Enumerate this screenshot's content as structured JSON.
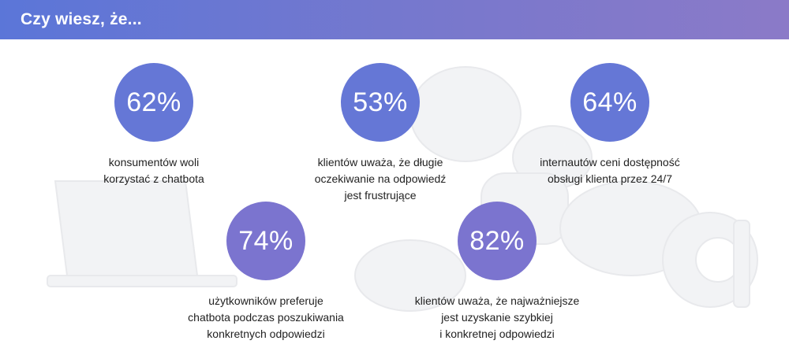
{
  "header": {
    "title": "Czy wiesz, że..."
  },
  "stats": [
    {
      "value": "62%",
      "text": "konsumentów woli\nkorzystać z chatbota"
    },
    {
      "value": "53%",
      "text": "klientów uważa, że długie\noczekiwanie na odpowiedź\njest frustrujące"
    },
    {
      "value": "64%",
      "text": "internautów ceni dostępność\nobsługi klienta przez 24/7"
    },
    {
      "value": "74%",
      "text": "użytkowników preferuje\nchatbota podczas poszukiwania\nkonkretnych odpowiedzi"
    },
    {
      "value": "82%",
      "text": "klientów uważa, że najważniejsze\njest uzyskanie szybkiej\ni konkretnej odpowiedzi"
    }
  ],
  "colors": {
    "header_start": "#5b76d8",
    "header_end": "#8b7ac8",
    "circle_blue": "#6577d6",
    "circle_purple": "#7b74cf"
  }
}
